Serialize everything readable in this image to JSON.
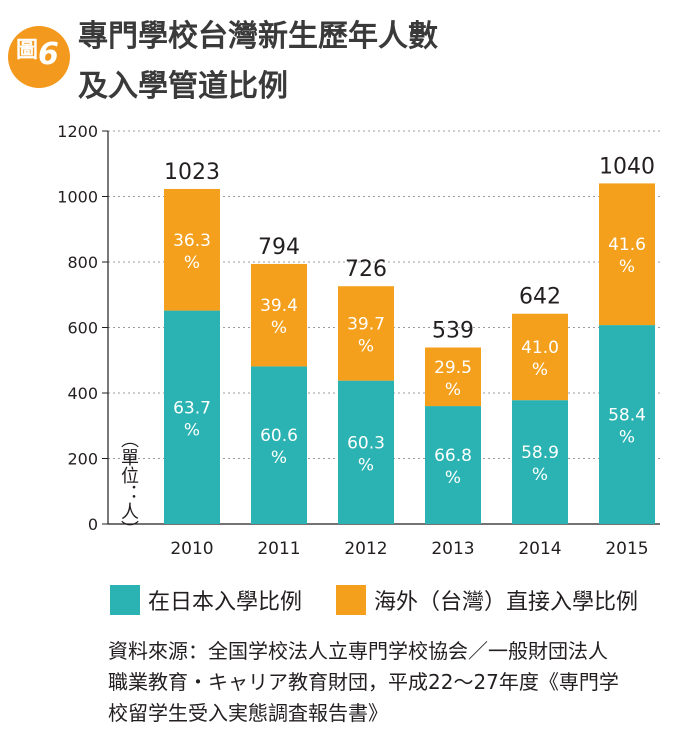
{
  "badge": {
    "label": "圖",
    "number": "6"
  },
  "title": {
    "line1": "專門學校台灣新生歷年人數",
    "line2": "及入學管道比例"
  },
  "unit_label": "（單位：人）",
  "legend": {
    "japan": "在日本入學比例",
    "overseas": "海外（台灣）直接入學比例"
  },
  "source": {
    "line1": "資料來源：全国学校法人立専門学校協会／一般財団法人",
    "line2": "職業教育・キャリア教育財団，平成22〜27年度《専門学",
    "line3": "校留学生受入実態調査報告書》"
  },
  "colors": {
    "japan": "#2ab3b2",
    "overseas": "#f4a01c",
    "badge": "#f39a1e",
    "axis": "#231f20",
    "grid": "#9d9d9d"
  },
  "chart_data": {
    "type": "bar",
    "stacked": true,
    "categories": [
      "2010",
      "2011",
      "2012",
      "2013",
      "2014",
      "2015"
    ],
    "totals": [
      1023,
      794,
      726,
      539,
      642,
      1040
    ],
    "series": [
      {
        "name": "在日本入學比例",
        "key": "japan",
        "percent": [
          63.7,
          60.6,
          60.3,
          66.8,
          58.9,
          58.4
        ]
      },
      {
        "name": "海外（台灣）直接入學比例",
        "key": "overseas",
        "percent": [
          36.3,
          39.4,
          39.7,
          29.5,
          41.0,
          41.6
        ]
      }
    ],
    "ylim": [
      0,
      1200
    ],
    "yticks": [
      0,
      200,
      400,
      600,
      800,
      1000,
      1200
    ],
    "grid": true
  }
}
